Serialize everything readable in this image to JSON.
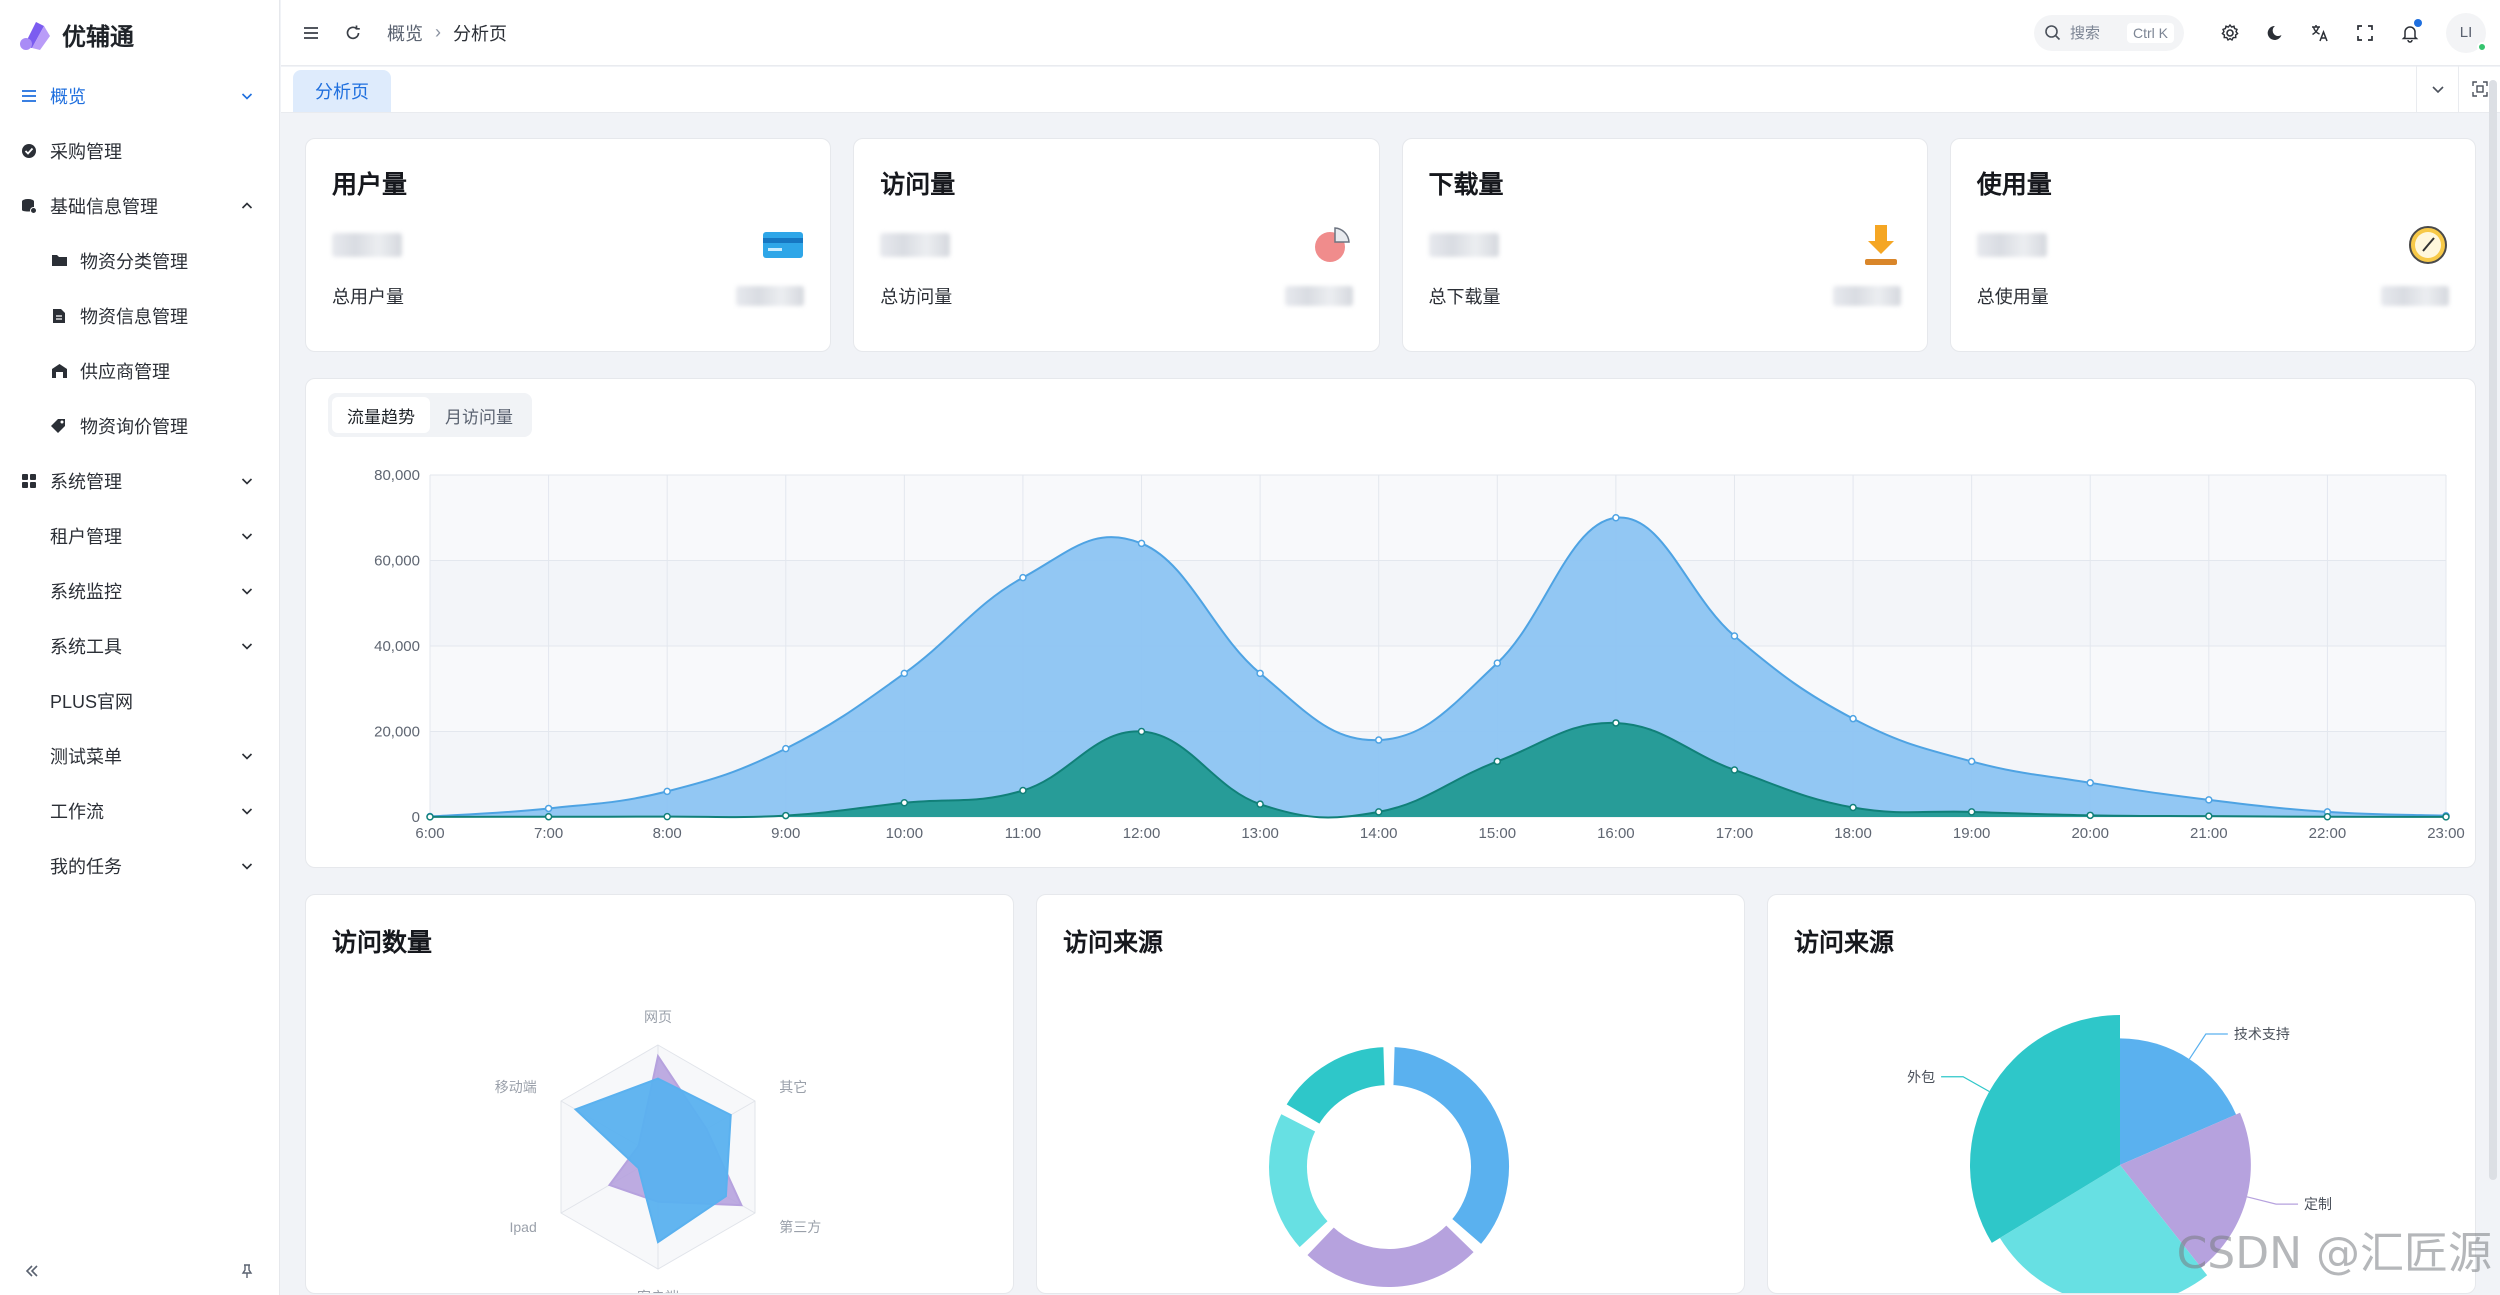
{
  "app": {
    "name": "优辅通"
  },
  "sidebar": {
    "items": [
      {
        "label": "概览",
        "icon": "menu-icon",
        "active": true,
        "chevron": "down"
      },
      {
        "label": "采购管理",
        "icon": "check-circle-icon"
      },
      {
        "label": "基础信息管理",
        "icon": "database-icon",
        "chevron": "up"
      },
      {
        "label": "物资分类管理",
        "icon": "folder-icon",
        "sub": true
      },
      {
        "label": "物资信息管理",
        "icon": "document-icon",
        "sub": true
      },
      {
        "label": "供应商管理",
        "icon": "warehouse-icon",
        "sub": true
      },
      {
        "label": "物资询价管理",
        "icon": "tags-icon",
        "sub": true
      },
      {
        "label": "系统管理",
        "icon": "grid-icon",
        "chevron": "down"
      },
      {
        "label": "租户管理",
        "plain": true,
        "chevron": "down"
      },
      {
        "label": "系统监控",
        "plain": true,
        "chevron": "down"
      },
      {
        "label": "系统工具",
        "plain": true,
        "chevron": "down"
      },
      {
        "label": "PLUS官网",
        "plain": true
      },
      {
        "label": "测试菜单",
        "plain": true,
        "chevron": "down"
      },
      {
        "label": "工作流",
        "plain": true,
        "chevron": "down"
      },
      {
        "label": "我的任务",
        "plain": true,
        "chevron": "down"
      }
    ]
  },
  "header": {
    "breadcrumb": [
      "概览",
      "分析页"
    ],
    "search_label": "搜索",
    "search_shortcut": "Ctrl K",
    "avatar_initials": "LI"
  },
  "tabs": [
    {
      "label": "分析页",
      "active": true
    }
  ],
  "stats": [
    {
      "title": "用户量",
      "footer": "总用户量",
      "icon": "card-icon"
    },
    {
      "title": "访问量",
      "footer": "总访问量",
      "icon": "pie-icon"
    },
    {
      "title": "下载量",
      "footer": "总下载量",
      "icon": "download-icon"
    },
    {
      "title": "使用量",
      "footer": "总使用量",
      "icon": "clock-icon"
    }
  ],
  "trend": {
    "segments": [
      "流量趋势",
      "月访问量"
    ],
    "active_segment": 0
  },
  "panels": {
    "radar_title": "访问数量",
    "donut_title": "访问来源",
    "pie_title": "访问来源"
  },
  "watermark": "CSDN @汇匠源",
  "colors": {
    "accent": "#1f6fde",
    "area_blue": "#8cc4f2",
    "area_teal": "#229a92",
    "teal": "#2ec7c9",
    "light_teal": "#67e0e3",
    "purple": "#b6a2de",
    "blue": "#5ab1ef"
  },
  "chart_data": [
    {
      "type": "area",
      "x": [
        "6:00",
        "7:00",
        "8:00",
        "9:00",
        "10:00",
        "11:00",
        "12:00",
        "13:00",
        "14:00",
        "15:00",
        "16:00",
        "17:00",
        "18:00",
        "19:00",
        "20:00",
        "21:00",
        "22:00",
        "23:00"
      ],
      "ylim": [
        0,
        80000
      ],
      "yticks": [
        "0",
        "20,000",
        "40,000",
        "60,000",
        "80,000"
      ],
      "series": [
        {
          "values": [
            111,
            2000,
            6000,
            16000,
            33600,
            56000,
            64000,
            33600,
            18000,
            36000,
            70000,
            42340,
            23000,
            13000,
            8000,
            4000,
            1200,
            300
          ],
          "color": "#8cc4f2"
        },
        {
          "values": [
            33,
            66,
            88,
            333,
            3333,
            6200,
            20000,
            3000,
            1200,
            13000,
            22000,
            11000,
            2221,
            1201,
            390,
            198,
            60,
            30
          ],
          "color": "#229a92"
        }
      ],
      "grid": true
    },
    {
      "type": "radar",
      "indicators": [
        "网页",
        "其它",
        "第三方",
        "客户端",
        "Ipad",
        "移动端"
      ],
      "series": [
        {
          "values": [
            90,
            50,
            86,
            40,
            50,
            20
          ],
          "color": "#b6a2de"
        },
        {
          "values": [
            70,
            75,
            70,
            76,
            20,
            85
          ],
          "color": "#5ab1ef"
        }
      ]
    },
    {
      "type": "pie",
      "variant": "donut",
      "slices": [
        {
          "value": 1048,
          "color": "#5ab1ef"
        },
        {
          "value": 735,
          "color": "#b6a2de"
        },
        {
          "value": 580,
          "color": "#67e0e3"
        },
        {
          "value": 484,
          "color": "#2ec7c9"
        }
      ]
    },
    {
      "type": "pie",
      "variant": "rose",
      "slices": [
        {
          "name": "外包",
          "value": 500,
          "color": "#2ec7c9"
        },
        {
          "name": "定制",
          "value": 310,
          "color": "#b6a2de"
        },
        {
          "name": "技术支持",
          "value": 274,
          "color": "#5ab1ef"
        },
        {
          "value": 400,
          "color": "#67e0e3"
        }
      ]
    }
  ]
}
